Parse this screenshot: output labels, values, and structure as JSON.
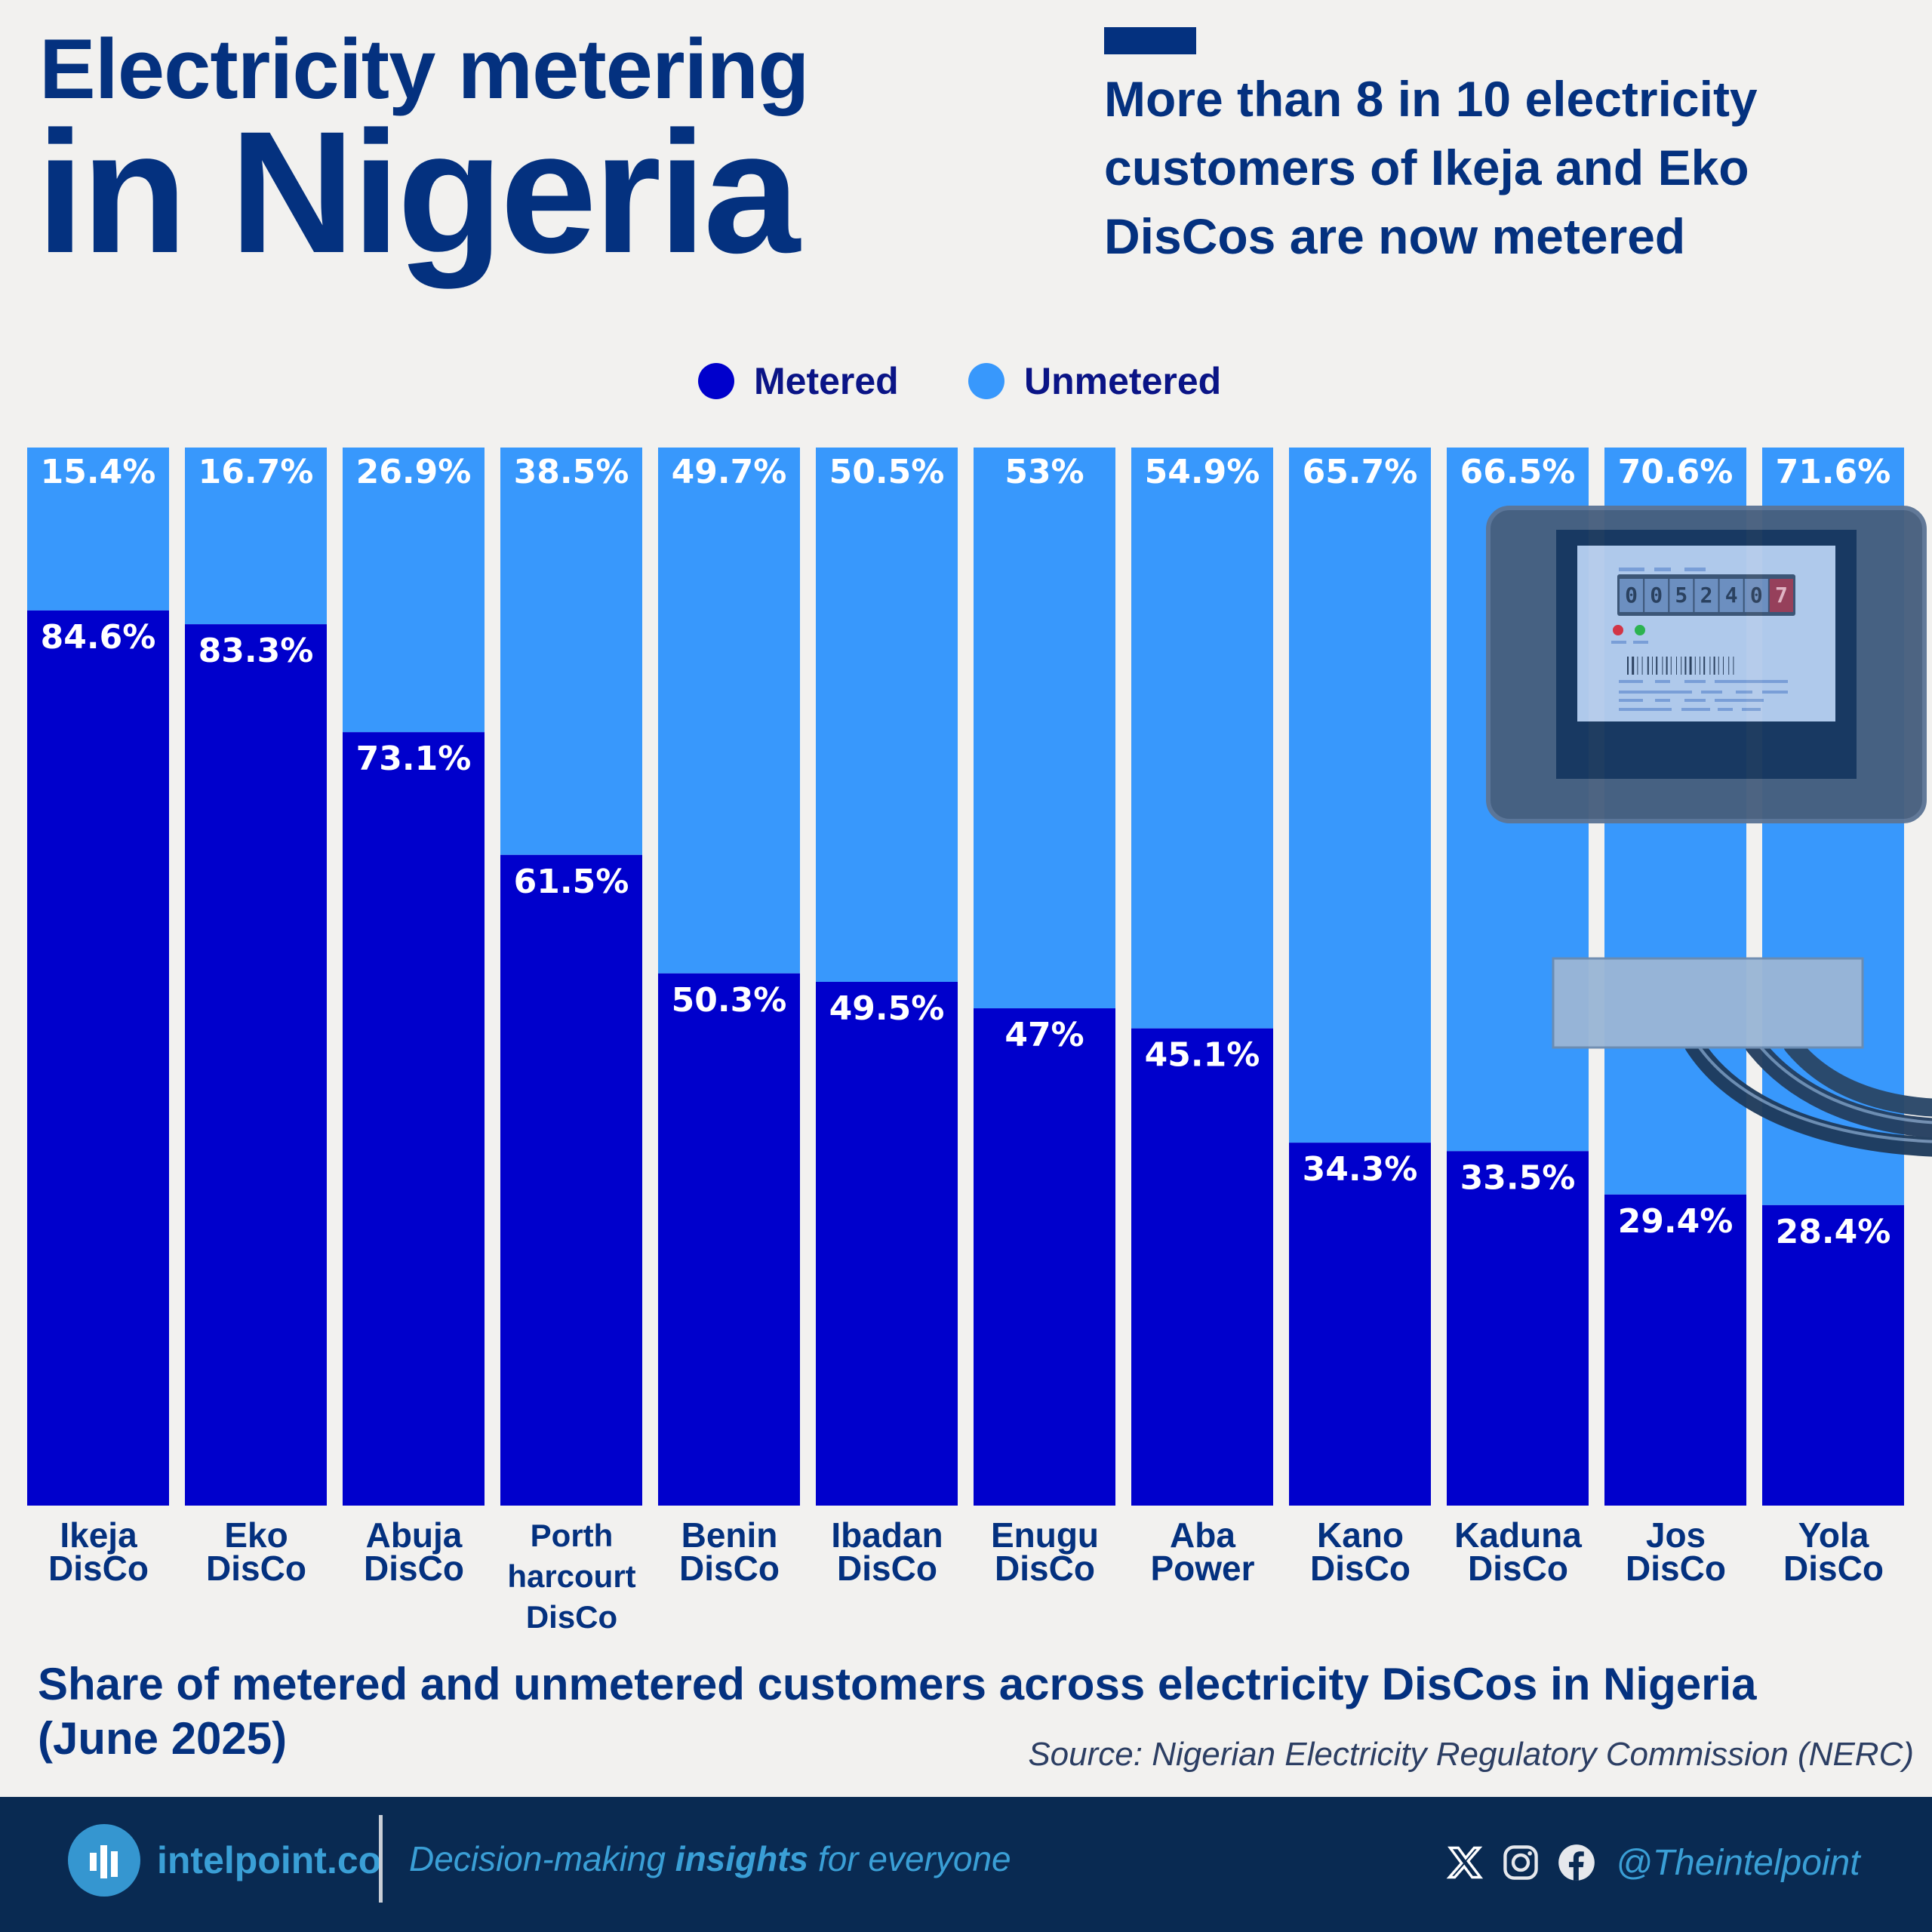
{
  "header": {
    "title_line1": "Electricity metering",
    "title_line2": "in Nigeria",
    "headline": "More than 8 in 10 electricity customers of Ikeja and Eko DisCos are now metered"
  },
  "legend": {
    "items": [
      {
        "label": "Metered",
        "color": "#0000cc"
      },
      {
        "label": "Unmetered",
        "color": "#3898fc"
      }
    ]
  },
  "chart_data": {
    "type": "bar",
    "stacked": true,
    "normalized": true,
    "title": "Share of metered and unmetered customers across electricity DisCos in Nigeria (June 2025)",
    "xlabel": "",
    "ylabel": "",
    "ylim": [
      0,
      100
    ],
    "grid": false,
    "legend_position": "top-center",
    "categories": [
      "Ikeja DisCo",
      "Eko DisCo",
      "Abuja DisCo",
      "Porth harcourt DisCo",
      "Benin DisCo",
      "Ibadan DisCo",
      "Enugu DisCo",
      "Aba Power",
      "Kano DisCo",
      "Kaduna DisCo",
      "Jos DisCo",
      "Yola DisCo"
    ],
    "category_lines": [
      [
        "Ikeja",
        "DisCo"
      ],
      [
        "Eko",
        "DisCo"
      ],
      [
        "Abuja",
        "DisCo"
      ],
      [
        "Porth",
        "harcourt",
        "DisCo"
      ],
      [
        "Benin",
        "DisCo"
      ],
      [
        "Ibadan",
        "DisCo"
      ],
      [
        "Enugu",
        "DisCo"
      ],
      [
        "Aba",
        "Power"
      ],
      [
        "Kano",
        "DisCo"
      ],
      [
        "Kaduna",
        "DisCo"
      ],
      [
        "Jos",
        "DisCo"
      ],
      [
        "Yola",
        "DisCo"
      ]
    ],
    "series": [
      {
        "name": "Metered",
        "color": "#0000cc",
        "values": [
          84.6,
          83.3,
          73.1,
          61.5,
          50.3,
          49.5,
          47,
          45.1,
          34.3,
          33.5,
          29.4,
          28.4
        ],
        "labels": [
          "84.6%",
          "83.3%",
          "73.1%",
          "61.5%",
          "50.3%",
          "49.5%",
          "47%",
          "45.1%",
          "34.3%",
          "33.5%",
          "29.4%",
          "28.4%"
        ]
      },
      {
        "name": "Unmetered",
        "color": "#3898fc",
        "values": [
          15.4,
          16.7,
          26.9,
          38.5,
          49.7,
          50.5,
          53,
          54.9,
          65.7,
          66.5,
          70.6,
          71.6
        ],
        "labels": [
          "15.4%",
          "16.7%",
          "26.9%",
          "38.5%",
          "49.7%",
          "50.5%",
          "53%",
          "54.9%",
          "65.7%",
          "66.5%",
          "70.6%",
          "71.6%"
        ]
      }
    ],
    "source": "Source: Nigerian Electricity Regulatory Commission (NERC)"
  },
  "illustration": {
    "meter_reading": [
      "0",
      "0",
      "5",
      "2",
      "4",
      "0",
      "7"
    ]
  },
  "footer": {
    "brand": "intelpoint.co",
    "tagline_pre": "Decision-making ",
    "tagline_bold": "insights",
    "tagline_post": " for everyone",
    "handle": "@Theintelpoint",
    "social_icons": [
      "x-icon",
      "instagram-icon",
      "facebook-icon"
    ]
  }
}
